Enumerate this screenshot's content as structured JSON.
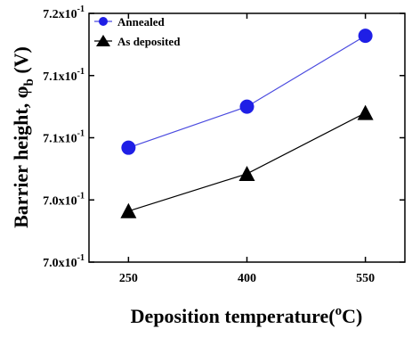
{
  "chart_data": {
    "type": "line",
    "x": [
      250,
      400,
      550
    ],
    "x_tick_labels": [
      "250",
      "400",
      "550"
    ],
    "xlim": [
      200,
      600
    ],
    "ylim": [
      0.7,
      0.72
    ],
    "y_ticks": [
      0.7,
      0.705,
      0.71,
      0.715,
      0.72
    ],
    "y_tick_labels": [
      {
        "mantissa": "7.0x10",
        "exponent": "-1"
      },
      {
        "mantissa": "7.0x10",
        "exponent": "-1"
      },
      {
        "mantissa": "7.1x10",
        "exponent": "-1"
      },
      {
        "mantissa": "7.1x10",
        "exponent": "-1"
      },
      {
        "mantissa": "7.2x10",
        "exponent": "-1"
      }
    ],
    "xlabel": {
      "main": "Deposition temperature(",
      "sup": "o",
      "tail": "C)"
    },
    "ylabel": {
      "main": "Barrier height, φ",
      "sub": "b",
      "tail": " (V)"
    },
    "legend_position": "top-left",
    "series": [
      {
        "name": "Annealed",
        "marker": "circle",
        "color": "#1f1fe6",
        "line_color": "#4a4adf",
        "values": [
          0.7092,
          0.7125,
          0.7182
        ]
      },
      {
        "name": "As deposited",
        "marker": "triangle",
        "color": "#000000",
        "line_color": "#000000",
        "values": [
          0.7041,
          0.7071,
          0.712
        ]
      }
    ]
  }
}
